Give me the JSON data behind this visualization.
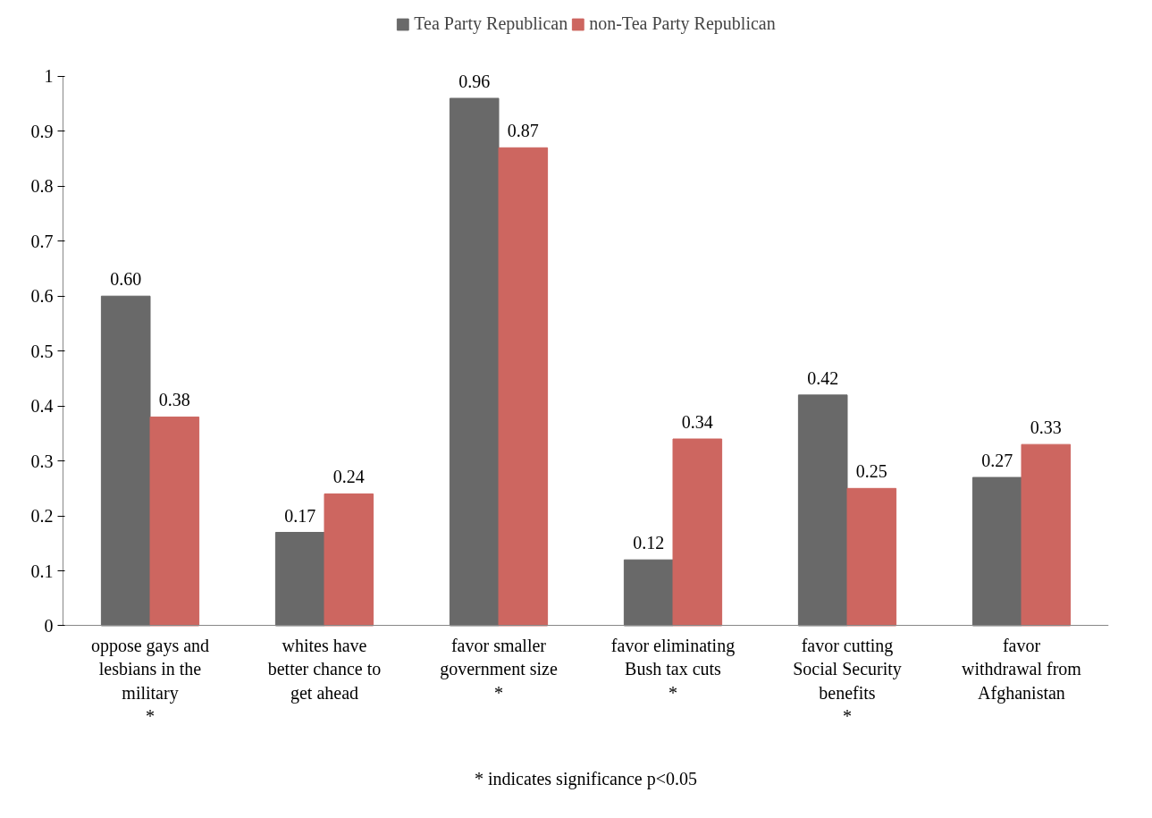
{
  "chart_data": {
    "type": "bar",
    "categories": [
      "oppose gays and\nlesbians in the\nmilitary\n*",
      "whites have\nbetter chance to\nget ahead",
      "favor smaller\ngovernment size\n*",
      "favor eliminating\nBush tax cuts\n*",
      "favor cutting\nSocial Security\nbenefits\n*",
      "favor\nwithdrawal from\nAfghanistan"
    ],
    "series": [
      {
        "name": "Tea Party Republican",
        "color": "#696969",
        "values": [
          0.6,
          0.17,
          0.96,
          0.12,
          0.42,
          0.27
        ],
        "value_labels": [
          "0.60",
          "0.17",
          "0.96",
          "0.12",
          "0.42",
          "0.27"
        ]
      },
      {
        "name": "non-Tea Party Republican",
        "color": "#cd6660",
        "values": [
          0.38,
          0.24,
          0.87,
          0.34,
          0.25,
          0.33
        ],
        "value_labels": [
          "0.38",
          "0.24",
          "0.87",
          "0.34",
          "0.25",
          "0.33"
        ]
      }
    ],
    "ylim": [
      0,
      1
    ],
    "yticks": [
      0,
      0.1,
      0.2,
      0.3,
      0.4,
      0.5,
      0.6,
      0.7,
      0.8,
      0.9,
      1
    ],
    "grid": false,
    "legend": "top",
    "annotations": [
      "* indicates significance p<0.05"
    ]
  }
}
